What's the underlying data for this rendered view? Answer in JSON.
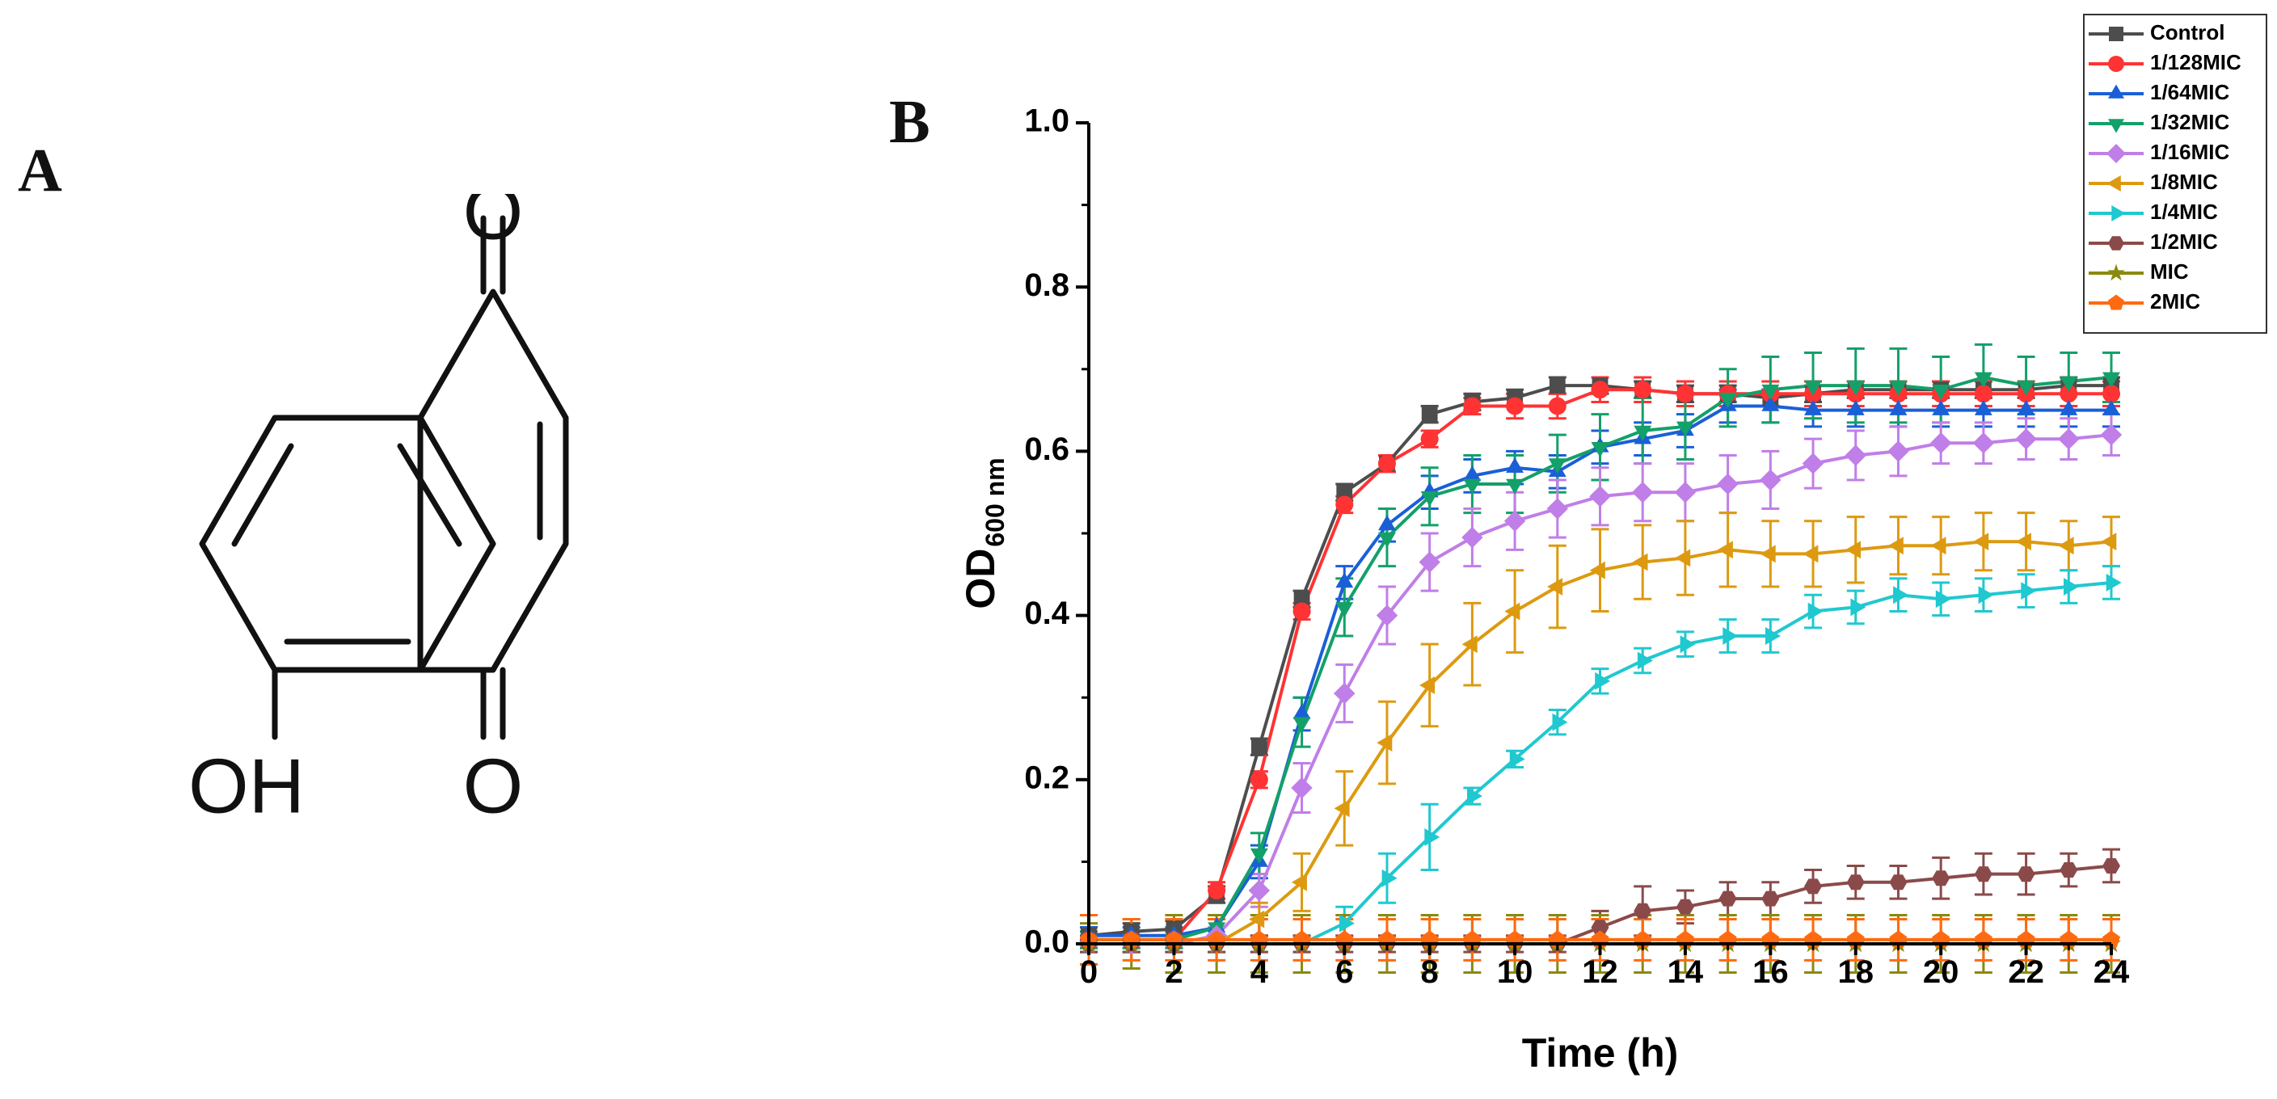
{
  "panel_a": {
    "label": "A",
    "atoms": {
      "o_top": "O",
      "o_bottom": "O",
      "oh": "OH"
    }
  },
  "panel_b": {
    "label": "B"
  },
  "chart_data": {
    "type": "line",
    "xlabel": "Time (h)",
    "ylabel_main": "OD",
    "ylabel_sub": "600 nm",
    "xlim": [
      0,
      24
    ],
    "ylim": [
      0,
      1.0
    ],
    "xticks": [
      0,
      2,
      4,
      6,
      8,
      10,
      12,
      14,
      16,
      18,
      20,
      22,
      24
    ],
    "yticks": [
      "0.0",
      "0.2",
      "0.4",
      "0.6",
      "0.8",
      "1.0"
    ],
    "legend_position": "top-right",
    "x": [
      0,
      1,
      2,
      3,
      4,
      5,
      6,
      7,
      8,
      9,
      10,
      11,
      12,
      13,
      14,
      15,
      16,
      17,
      18,
      19,
      20,
      21,
      22,
      23,
      24
    ],
    "series": [
      {
        "name": "Control",
        "color": "#4d4d4d",
        "marker": "square",
        "values": [
          0.01,
          0.015,
          0.018,
          0.06,
          0.24,
          0.42,
          0.55,
          0.585,
          0.645,
          0.66,
          0.665,
          0.68,
          0.68,
          0.675,
          0.67,
          0.67,
          0.665,
          0.67,
          0.675,
          0.675,
          0.675,
          0.675,
          0.675,
          0.68,
          0.68
        ],
        "errors": [
          0.01,
          0.01,
          0.01,
          0.01,
          0.01,
          0.01,
          0.01,
          0.01,
          0.01,
          0.01,
          0.01,
          0.01,
          0.01,
          0.01,
          0.01,
          0.01,
          0.01,
          0.01,
          0.01,
          0.01,
          0.01,
          0.01,
          0.01,
          0.01,
          0.01
        ]
      },
      {
        "name": "1/128MIC",
        "color": "#ff3333",
        "marker": "circle",
        "values": [
          0.005,
          0.005,
          0.005,
          0.065,
          0.2,
          0.405,
          0.535,
          0.585,
          0.615,
          0.655,
          0.655,
          0.655,
          0.675,
          0.675,
          0.67,
          0.67,
          0.67,
          0.67,
          0.67,
          0.67,
          0.67,
          0.67,
          0.67,
          0.67,
          0.67
        ],
        "errors": [
          0.01,
          0.01,
          0.01,
          0.01,
          0.01,
          0.01,
          0.01,
          0.01,
          0.01,
          0.01,
          0.015,
          0.015,
          0.015,
          0.015,
          0.015,
          0.015,
          0.015,
          0.015,
          0.015,
          0.015,
          0.015,
          0.015,
          0.015,
          0.015,
          0.015
        ]
      },
      {
        "name": "1/64MIC",
        "color": "#1a5fd6",
        "marker": "triangle-up",
        "values": [
          0.01,
          0.01,
          0.01,
          0.02,
          0.1,
          0.28,
          0.44,
          0.51,
          0.55,
          0.57,
          0.58,
          0.575,
          0.605,
          0.615,
          0.625,
          0.655,
          0.655,
          0.65,
          0.65,
          0.65,
          0.65,
          0.65,
          0.65,
          0.65,
          0.65
        ],
        "errors": [
          0.01,
          0.01,
          0.01,
          0.01,
          0.02,
          0.02,
          0.02,
          0.02,
          0.02,
          0.02,
          0.02,
          0.02,
          0.02,
          0.02,
          0.02,
          0.02,
          0.02,
          0.02,
          0.02,
          0.02,
          0.02,
          0.02,
          0.02,
          0.02,
          0.02
        ]
      },
      {
        "name": "1/32MIC",
        "color": "#13a069",
        "marker": "triangle-down",
        "values": [
          0.005,
          0.005,
          0.005,
          0.02,
          0.11,
          0.27,
          0.41,
          0.495,
          0.545,
          0.56,
          0.56,
          0.585,
          0.605,
          0.625,
          0.63,
          0.665,
          0.675,
          0.68,
          0.68,
          0.68,
          0.675,
          0.69,
          0.68,
          0.685,
          0.69
        ],
        "errors": [
          0.01,
          0.01,
          0.01,
          0.01,
          0.025,
          0.03,
          0.035,
          0.035,
          0.035,
          0.035,
          0.035,
          0.035,
          0.04,
          0.04,
          0.04,
          0.035,
          0.04,
          0.04,
          0.045,
          0.045,
          0.04,
          0.04,
          0.035,
          0.035,
          0.03
        ]
      },
      {
        "name": "1/16MIC",
        "color": "#c07ee8",
        "marker": "diamond",
        "values": [
          0.0,
          0.0,
          0.0,
          0.01,
          0.065,
          0.19,
          0.305,
          0.4,
          0.465,
          0.495,
          0.515,
          0.53,
          0.545,
          0.55,
          0.55,
          0.56,
          0.565,
          0.585,
          0.595,
          0.6,
          0.61,
          0.61,
          0.615,
          0.615,
          0.62
        ],
        "errors": [
          0.01,
          0.01,
          0.01,
          0.01,
          0.02,
          0.03,
          0.035,
          0.035,
          0.035,
          0.035,
          0.035,
          0.035,
          0.035,
          0.035,
          0.035,
          0.035,
          0.035,
          0.03,
          0.03,
          0.03,
          0.025,
          0.025,
          0.025,
          0.025,
          0.025
        ]
      },
      {
        "name": "1/8MIC",
        "color": "#dd9a10",
        "marker": "triangle-left",
        "values": [
          0.0,
          0.0,
          0.0,
          0.0,
          0.03,
          0.075,
          0.165,
          0.245,
          0.315,
          0.365,
          0.405,
          0.435,
          0.455,
          0.465,
          0.47,
          0.48,
          0.475,
          0.475,
          0.48,
          0.485,
          0.485,
          0.49,
          0.49,
          0.485,
          0.49
        ],
        "errors": [
          0.01,
          0.01,
          0.01,
          0.01,
          0.02,
          0.035,
          0.045,
          0.05,
          0.05,
          0.05,
          0.05,
          0.05,
          0.05,
          0.045,
          0.045,
          0.045,
          0.04,
          0.04,
          0.04,
          0.035,
          0.035,
          0.035,
          0.035,
          0.03,
          0.03
        ]
      },
      {
        "name": "1/4MIC",
        "color": "#20c8d0",
        "marker": "triangle-right",
        "values": [
          0.0,
          0.0,
          0.0,
          0.0,
          0.0,
          0.0,
          0.025,
          0.08,
          0.13,
          0.18,
          0.225,
          0.27,
          0.32,
          0.345,
          0.365,
          0.375,
          0.375,
          0.405,
          0.41,
          0.425,
          0.42,
          0.425,
          0.43,
          0.435,
          0.44
        ],
        "errors": [
          0.01,
          0.01,
          0.01,
          0.01,
          0.01,
          0.01,
          0.02,
          0.03,
          0.04,
          0.01,
          0.01,
          0.015,
          0.015,
          0.015,
          0.015,
          0.02,
          0.02,
          0.02,
          0.02,
          0.02,
          0.02,
          0.02,
          0.02,
          0.02,
          0.02
        ]
      },
      {
        "name": "1/2MIC",
        "color": "#8b4a4a",
        "marker": "hexagon",
        "values": [
          0.0,
          0.0,
          0.0,
          0.0,
          0.0,
          0.0,
          0.0,
          0.0,
          0.0,
          0.0,
          0.0,
          0.0,
          0.02,
          0.04,
          0.045,
          0.055,
          0.055,
          0.07,
          0.075,
          0.075,
          0.08,
          0.085,
          0.085,
          0.09,
          0.095
        ],
        "errors": [
          0.01,
          0.01,
          0.01,
          0.01,
          0.01,
          0.01,
          0.01,
          0.01,
          0.01,
          0.01,
          0.01,
          0.01,
          0.02,
          0.03,
          0.02,
          0.02,
          0.02,
          0.02,
          0.02,
          0.02,
          0.025,
          0.025,
          0.025,
          0.02,
          0.02
        ]
      },
      {
        "name": "MIC",
        "color": "#8a8a10",
        "marker": "star",
        "values": [
          0.0,
          0.0,
          0.0,
          0.0,
          0.0,
          0.0,
          0.0,
          0.0,
          0.0,
          0.0,
          0.0,
          0.0,
          0.0,
          0.0,
          0.0,
          0.0,
          0.0,
          0.0,
          0.0,
          0.0,
          0.0,
          0.0,
          0.0,
          0.0,
          0.0
        ],
        "errors": [
          0.025,
          0.03,
          0.035,
          0.035,
          0.035,
          0.035,
          0.035,
          0.035,
          0.035,
          0.035,
          0.035,
          0.035,
          0.035,
          0.035,
          0.035,
          0.035,
          0.035,
          0.035,
          0.035,
          0.035,
          0.035,
          0.035,
          0.035,
          0.035,
          0.035
        ]
      },
      {
        "name": "2MIC",
        "color": "#ff6a10",
        "marker": "pentagon",
        "values": [
          0.005,
          0.005,
          0.005,
          0.005,
          0.005,
          0.005,
          0.005,
          0.005,
          0.005,
          0.005,
          0.005,
          0.005,
          0.005,
          0.005,
          0.005,
          0.005,
          0.005,
          0.005,
          0.005,
          0.005,
          0.005,
          0.005,
          0.005,
          0.005,
          0.005
        ],
        "errors": [
          0.03,
          0.025,
          0.025,
          0.025,
          0.025,
          0.025,
          0.025,
          0.025,
          0.025,
          0.025,
          0.025,
          0.025,
          0.025,
          0.025,
          0.025,
          0.025,
          0.025,
          0.025,
          0.025,
          0.025,
          0.025,
          0.025,
          0.025,
          0.025,
          0.025
        ]
      }
    ]
  }
}
